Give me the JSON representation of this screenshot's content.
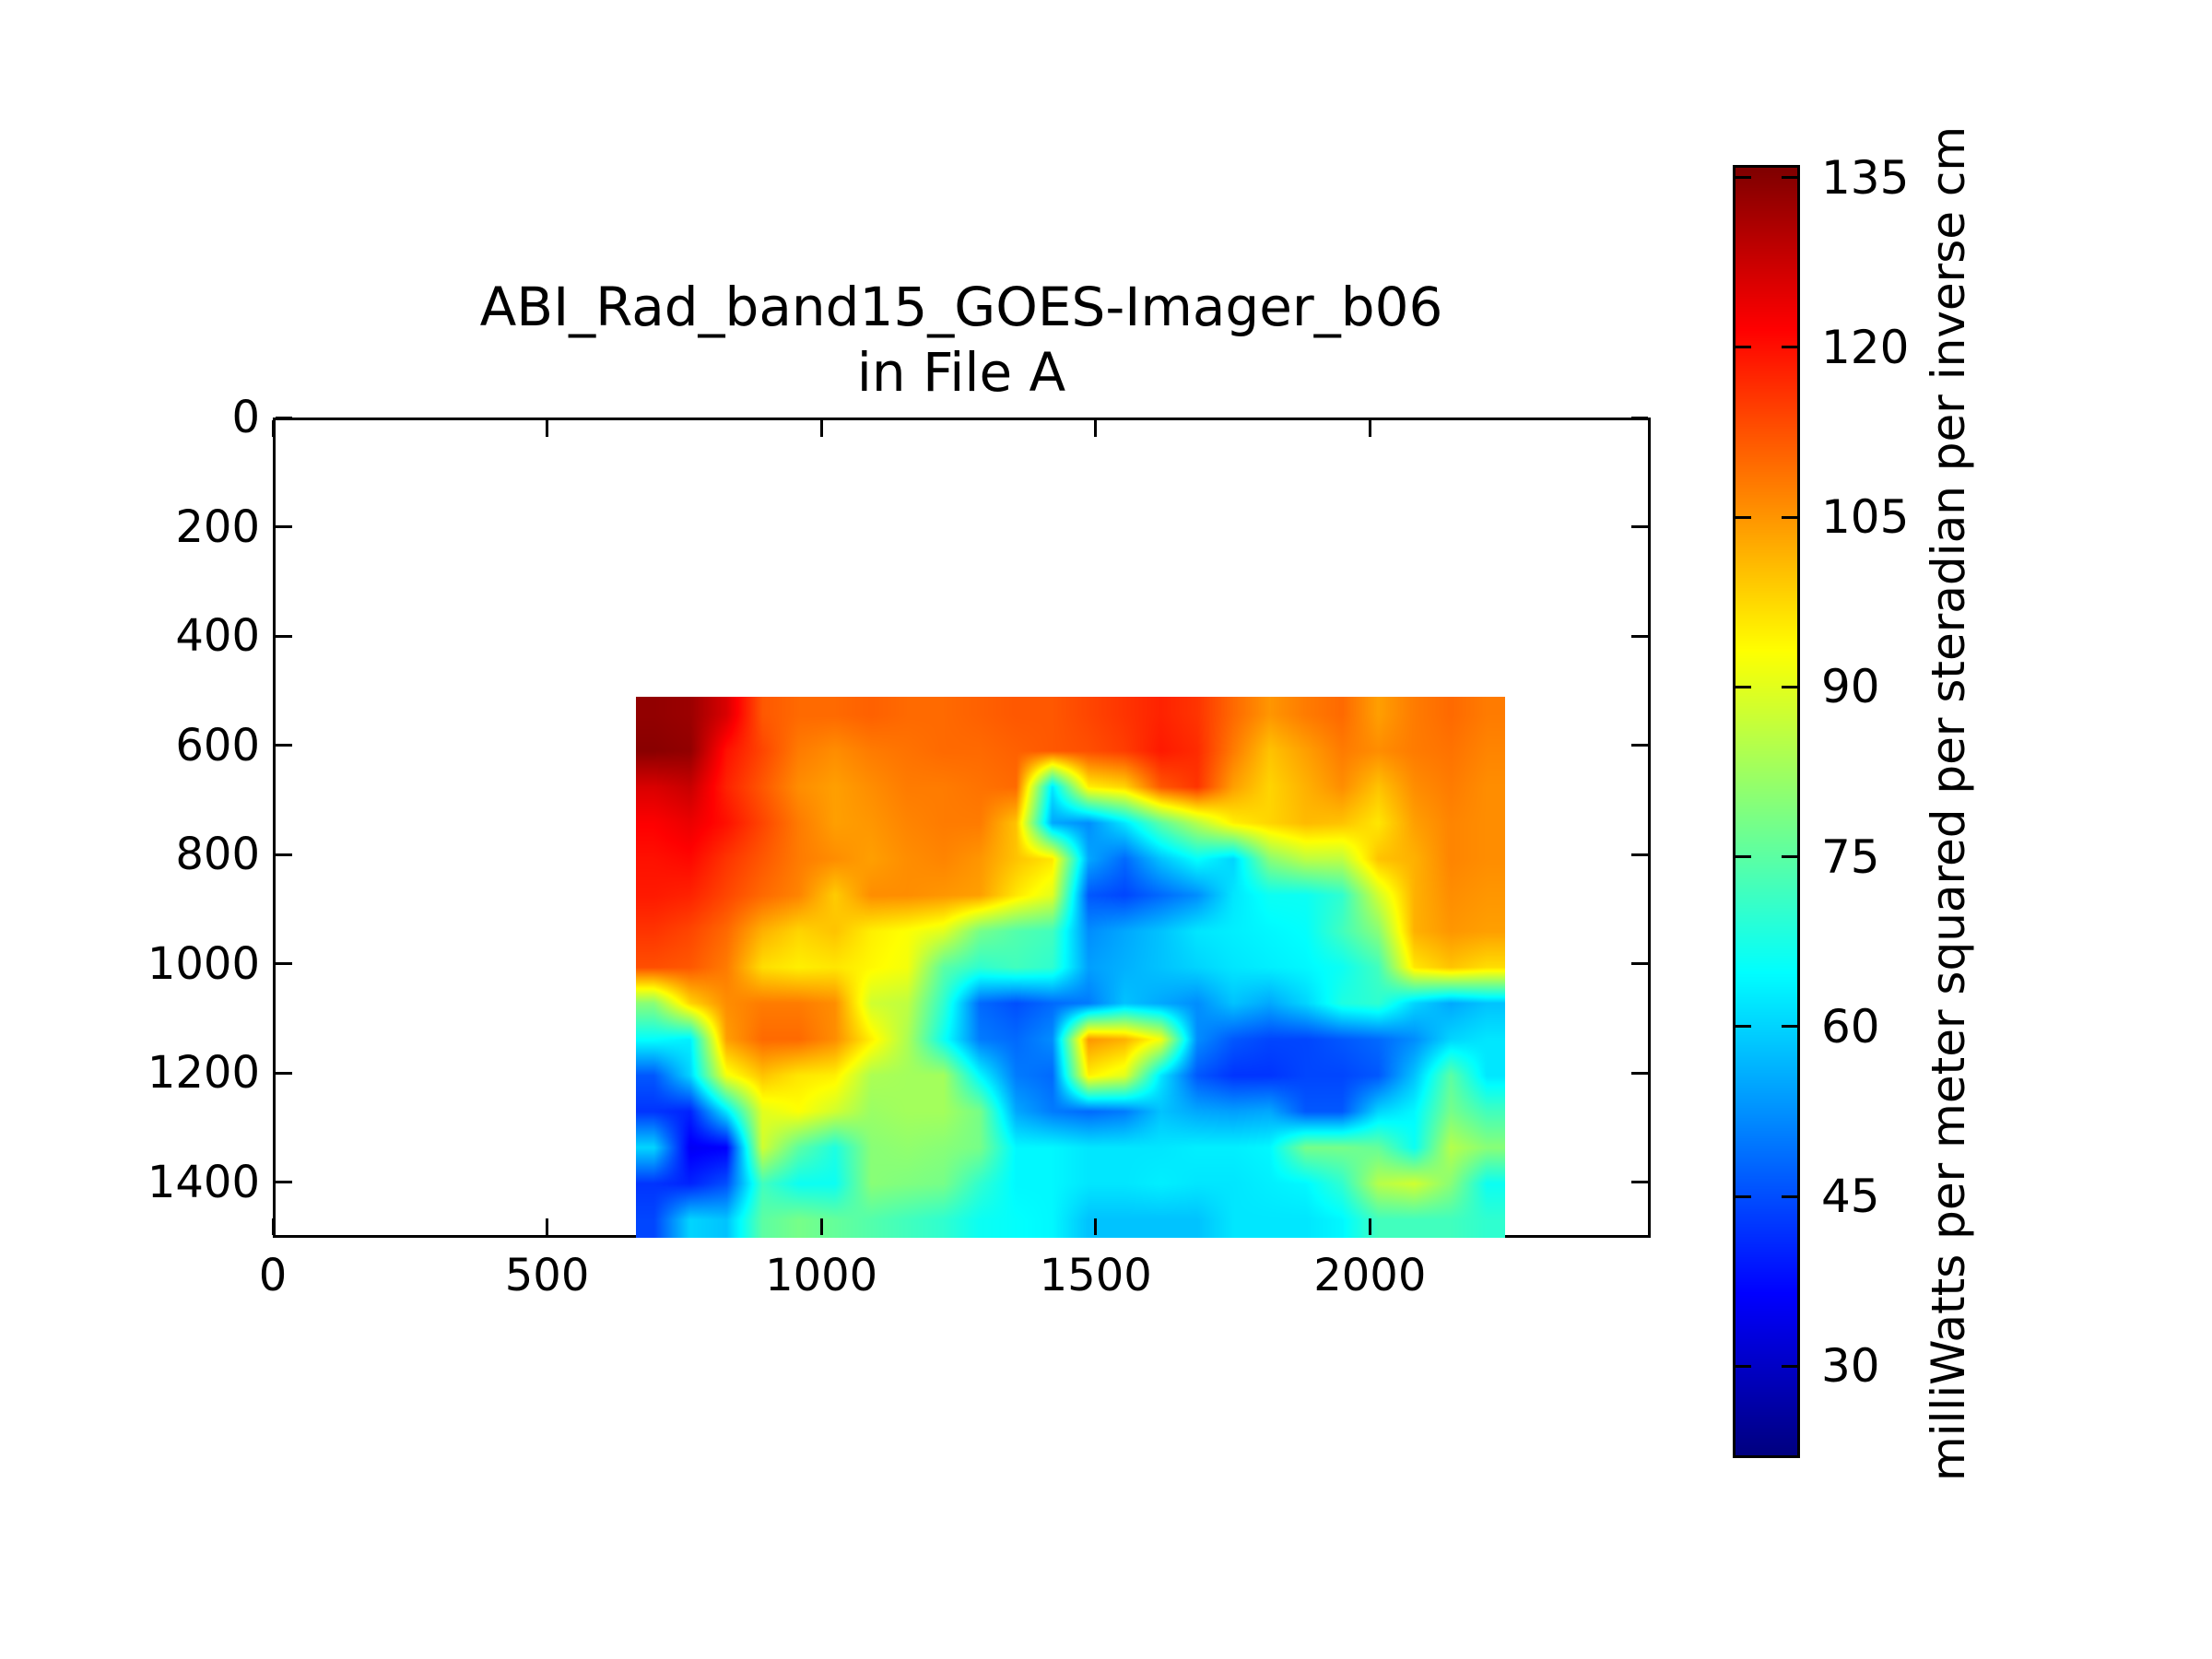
{
  "figure": {
    "title_line1": "ABI_Rad_band15_GOES-Imager_b06",
    "title_line2": "in File A"
  },
  "axes": {
    "xlim": [
      0,
      2512
    ],
    "ylim": [
      0,
      1502
    ],
    "y_inverted": true,
    "xticks": [
      0,
      500,
      1000,
      1500,
      2000
    ],
    "yticks": [
      0,
      200,
      400,
      600,
      800,
      1000,
      1200,
      1400
    ]
  },
  "colorbar": {
    "vmin": 21.9,
    "vmax": 136.1,
    "ticks": [
      30,
      45,
      60,
      75,
      90,
      105,
      120,
      135
    ],
    "label": "milliWatts per meter squared per steradian per inverse cm",
    "colormap": "jet"
  },
  "chart_data": {
    "type": "heatmap",
    "title": "ABI_Rad_band15_GOES-Imager_b06 in File A",
    "value_units": "milliWatts per meter squared per steradian per inverse cm",
    "colormap": "jet",
    "color_range": [
      21.9,
      136.1
    ],
    "axis_note": "pixel row/column indices; y axis inverted (0 at top)",
    "xlim": [
      0,
      2512
    ],
    "ylim": [
      0,
      1502
    ],
    "data_extent": {
      "x0": 662,
      "x1": 2247,
      "y0": 511,
      "y1": 1502
    },
    "grid_rows": 15,
    "grid_cols": 24,
    "values": [
      [
        134,
        133,
        126,
        112,
        110,
        110,
        111,
        110,
        110,
        111,
        112,
        112,
        114,
        116,
        118,
        116,
        110,
        105,
        108,
        110,
        104,
        108,
        110,
        108
      ],
      [
        135,
        134,
        120,
        114,
        108,
        106,
        108,
        109,
        110,
        110,
        111,
        112,
        113,
        115,
        119,
        117,
        108,
        100,
        104,
        108,
        106,
        108,
        109,
        107
      ],
      [
        126,
        128,
        118,
        112,
        106,
        104,
        106,
        108,
        108,
        109,
        110,
        62,
        95,
        98,
        112,
        116,
        104,
        98,
        102,
        106,
        100,
        106,
        108,
        106
      ],
      [
        122,
        124,
        120,
        114,
        108,
        104,
        105,
        107,
        108,
        108,
        100,
        55,
        52,
        62,
        75,
        85,
        95,
        98,
        101,
        100,
        96,
        104,
        107,
        106
      ],
      [
        120,
        121,
        116,
        112,
        108,
        106,
        104,
        106,
        107,
        105,
        100,
        96,
        55,
        48,
        58,
        65,
        60,
        80,
        86,
        86,
        100,
        102,
        107,
        106
      ],
      [
        119,
        118,
        114,
        110,
        107,
        99,
        106,
        106,
        105,
        104,
        96,
        90,
        46,
        44,
        48,
        52,
        62,
        66,
        66,
        70,
        88,
        102,
        106,
        105
      ],
      [
        116,
        114,
        110,
        102,
        98,
        100,
        95,
        93,
        90,
        78,
        74,
        72,
        52,
        55,
        58,
        62,
        63,
        64,
        65,
        72,
        80,
        102,
        105,
        104
      ],
      [
        113,
        112,
        108,
        97,
        95,
        96,
        94,
        92,
        75,
        70,
        72,
        70,
        54,
        56,
        58,
        60,
        62,
        63,
        64,
        66,
        72,
        96,
        100,
        97
      ],
      [
        80,
        98,
        106,
        108,
        108,
        106,
        88,
        86,
        70,
        48,
        45,
        48,
        50,
        58,
        55,
        52,
        58,
        55,
        60,
        68,
        70,
        60,
        55,
        58
      ],
      [
        65,
        63,
        104,
        110,
        110,
        106,
        95,
        84,
        66,
        50,
        48,
        52,
        105,
        102,
        92,
        52,
        46,
        44,
        44,
        46,
        48,
        52,
        60,
        62
      ],
      [
        46,
        60,
        92,
        100,
        96,
        95,
        84,
        83,
        83,
        64,
        50,
        48,
        95,
        90,
        62,
        46,
        42,
        42,
        44,
        44,
        46,
        58,
        75,
        62
      ],
      [
        42,
        40,
        62,
        90,
        93,
        88,
        82,
        83,
        83,
        78,
        55,
        50,
        48,
        50,
        58,
        55,
        54,
        55,
        46,
        46,
        60,
        64,
        78,
        72
      ],
      [
        60,
        35,
        36,
        88,
        75,
        68,
        80,
        81,
        80,
        78,
        64,
        64,
        62,
        62,
        62,
        63,
        63,
        64,
        78,
        78,
        76,
        66,
        85,
        80
      ],
      [
        42,
        40,
        45,
        72,
        66,
        66,
        80,
        79,
        78,
        70,
        64,
        64,
        62,
        62,
        63,
        62,
        62,
        63,
        64,
        70,
        85,
        88,
        80,
        66
      ],
      [
        44,
        60,
        58,
        75,
        78,
        76,
        74,
        72,
        70,
        66,
        65,
        64,
        58,
        58,
        58,
        58,
        62,
        62,
        62,
        64,
        72,
        72,
        72,
        70
      ]
    ]
  }
}
